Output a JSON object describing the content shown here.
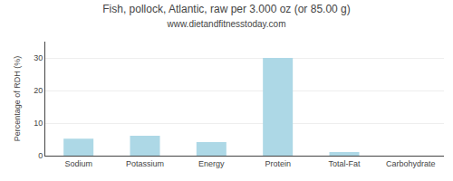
{
  "chart_data": {
    "type": "bar",
    "title": "Fish, pollock, Atlantic, raw per 3.000 oz (or 85.00 g)",
    "subtitle": "www.dietandfitnesstoday.com",
    "categories": [
      "Sodium",
      "Potassium",
      "Energy",
      "Protein",
      "Total-Fat",
      "Carbohydrate"
    ],
    "values": [
      5.2,
      6.1,
      4.2,
      30.0,
      1.1,
      0.0
    ],
    "color": "#add8e6",
    "ylabel": "Percentage of RDH (%)",
    "ylim": [
      0,
      35
    ],
    "yticks": [
      0,
      10,
      20,
      30
    ],
    "grid": true
  }
}
